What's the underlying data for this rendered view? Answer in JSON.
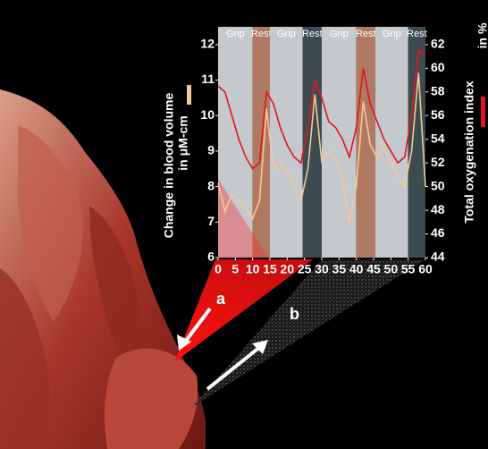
{
  "chart_data": {
    "type": "line",
    "ylabel": [
      "Change in blood volume",
      "in μM-cm"
    ],
    "y2label": [
      "Total oxygenation index",
      "in %"
    ],
    "annotations": [
      "a",
      "b"
    ],
    "phases": [
      {
        "label": "Grip",
        "start": 0,
        "end": 10,
        "color": "#c5c8cc"
      },
      {
        "label": "Rest",
        "start": 10,
        "end": 15,
        "color": "#b07a62"
      },
      {
        "label": "Grip",
        "start": 15,
        "end": 24.5,
        "color": "#c5c8cc"
      },
      {
        "label": "Rest",
        "start": 24.5,
        "end": 30,
        "color": "#3d4b50"
      },
      {
        "label": "Grip",
        "start": 30,
        "end": 40,
        "color": "#c5c8cc"
      },
      {
        "label": "Rest",
        "start": 40,
        "end": 45.5,
        "color": "#b07a62"
      },
      {
        "label": "Grip",
        "start": 45.5,
        "end": 55,
        "color": "#c5c8cc"
      },
      {
        "label": "Rest",
        "start": 55,
        "end": 60,
        "color": "#3d4b50"
      }
    ],
    "x": [
      0,
      2,
      4,
      6,
      8,
      10,
      12,
      14,
      16,
      18,
      20,
      22,
      24,
      26,
      28,
      30,
      32,
      34,
      36,
      38,
      40,
      42,
      44,
      46,
      48,
      50,
      52,
      54,
      56,
      58,
      60
    ],
    "series": [
      {
        "color": "#f2c99a",
        "axis": "y",
        "values": [
          8.1,
          7.3,
          7.8,
          7.6,
          7.4,
          7.1,
          7.6,
          10.2,
          8.5,
          8.7,
          8.4,
          8.0,
          7.6,
          8.5,
          10.6,
          8.7,
          9.0,
          8.8,
          8.2,
          7.0,
          8.0,
          10.4,
          9.2,
          8.8,
          9.1,
          8.7,
          8.3,
          8.0,
          9.0,
          11.2,
          8.0
        ]
      },
      {
        "color": "#e0161e",
        "axis": "y2",
        "values": [
          58.5,
          58,
          56,
          54,
          52.5,
          51.5,
          52,
          58,
          57,
          55,
          53.5,
          52.5,
          52,
          55,
          59,
          57.5,
          55.5,
          55,
          54,
          52.5,
          55,
          60,
          57,
          55.5,
          54,
          53,
          52,
          52.5,
          56,
          61.5,
          61
        ]
      }
    ],
    "xlim": [
      0,
      60
    ],
    "xticks": [
      0,
      5,
      10,
      15,
      20,
      25,
      30,
      35,
      40,
      45,
      50,
      55,
      60
    ],
    "ylim": [
      6,
      12.5
    ],
    "yticks": [
      6,
      7,
      8,
      9,
      10,
      11,
      12
    ],
    "y2lim": [
      44,
      63.5
    ],
    "y2ticks": [
      44,
      46,
      48,
      50,
      52,
      54,
      56,
      58,
      60,
      62
    ]
  }
}
